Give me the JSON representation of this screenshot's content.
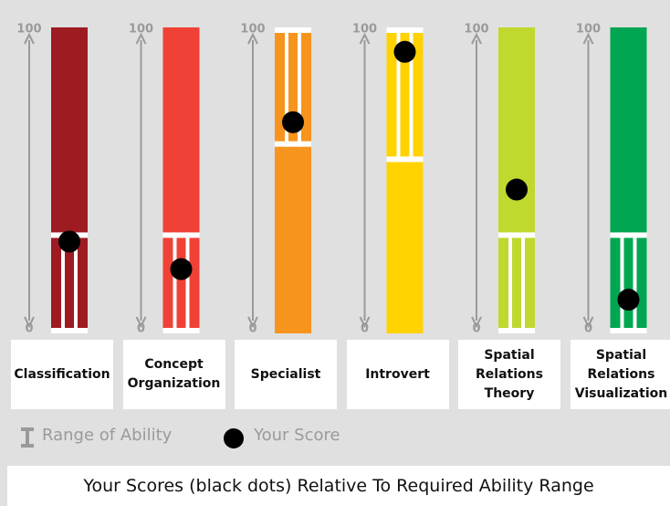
{
  "chart_data": {
    "type": "range",
    "title": "Your Scores (black dots) Relative To Required Ability Range",
    "categories": [
      "Classification",
      "Concept Organization",
      "Specialist",
      "Introvert",
      "Spatial Relations Theory",
      "Spatial Relations Visualization"
    ],
    "colors": [
      "#9e1b22",
      "#ef4136",
      "#f7941d",
      "#ffd200",
      "#c1d82f",
      "#00a651"
    ],
    "ylim": [
      0,
      100
    ],
    "yticks": [
      0,
      100
    ],
    "series": [
      {
        "name": "Range of Ability",
        "color": "#ffffff",
        "low": [
          0,
          0,
          61,
          56,
          0,
          0
        ],
        "high": [
          33,
          33,
          100,
          100,
          33,
          33
        ]
      },
      {
        "name": "Your Score",
        "color": "#000000",
        "values": [
          30,
          21,
          69,
          92,
          47,
          11
        ]
      }
    ]
  }
}
